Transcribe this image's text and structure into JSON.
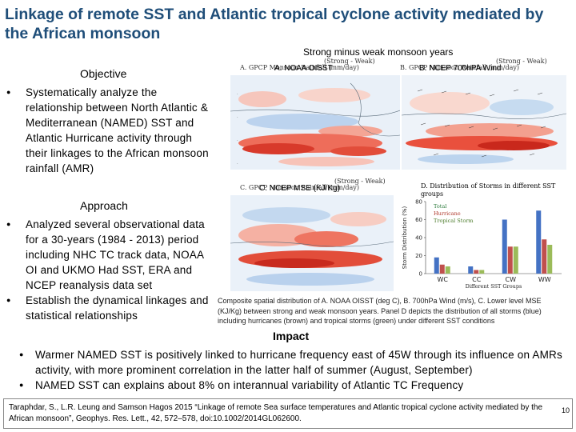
{
  "slide": {
    "title": "Linkage of remote SST and Atlantic tropical cyclone activity mediated by the African monsoon",
    "figure_heading": "Strong minus weak monsoon years",
    "page_number": "10"
  },
  "objective": {
    "heading": "Objective",
    "bullets": [
      "Systematically analyze the relationship between North Atlantic & Mediterranean (NAMED) SST and Atlantic Hurricane activity through their linkages to the African monsoon rainfall (AMR)"
    ]
  },
  "approach": {
    "heading": "Approach",
    "bullets": [
      "Analyzed several observational data for a 30-years (1984 - 2013) period including NHC TC track data, NOAA OI and UKMO Had SST, ERA and NCEP reanalysis data set",
      "Establish the dynamical linkages and statistical relationships"
    ]
  },
  "panels": {
    "a_label": "A. NOAA OISST",
    "a_sublabel": "A. GPCP Monsoon Rainfall (mm/day)",
    "a_corner": "(Strong - Weak)",
    "b_label": "B. NCEP 700hPA Wind",
    "b_sublabel": "B. GPCP Monsoon Rainfall (mm/day)",
    "b_corner": "(Strong - Weak)",
    "c_label": "C. NCEP MSE (KJ/Kg)",
    "c_sublabel": "C. GPCP Monsoon Rainfall (mm/day)",
    "c_corner": "(Strong - Weak)",
    "d_title": "D. Distribution of Storms in different SST groups"
  },
  "chart_data": {
    "type": "bar",
    "title": "D. Distribution of Storms in different SST groups",
    "xlabel": "Different SST Groups",
    "ylabel": "Storm Distribution (%)",
    "categories": [
      "WC",
      "CC",
      "CW",
      "WW"
    ],
    "ylim": [
      0,
      80
    ],
    "yticks": [
      0,
      20,
      40,
      60,
      80
    ],
    "series": [
      {
        "name": "Total",
        "color": "#4472c4",
        "values": [
          18,
          8,
          60,
          70
        ]
      },
      {
        "name": "Hurricane",
        "color": "#c0504d",
        "values": [
          10,
          4,
          30,
          38
        ]
      },
      {
        "name": "Tropical Storm",
        "color": "#9bbb59",
        "values": [
          8,
          4,
          30,
          32
        ]
      }
    ],
    "legend_position": "top-left"
  },
  "caption": "Composite spatial distribution of A. NOAA OISST (deg C), B. 700hPa Wind (m/s), C. Lower level MSE (KJ/Kg) between strong and weak monsoon years. Panel D depicts the distribution of all storms (blue) including hurricanes (brown) and tropical storms (green) under different SST conditions",
  "impact": {
    "heading": "Impact",
    "bullets": [
      "Warmer NAMED SST is positively linked to hurricane frequency east of 45W through its influence on AMRs activity, with more prominent correlation in the latter half of summer (August, September)",
      "NAMED SST can explains about 8% on interannual variability of Atlantic TC Frequency"
    ]
  },
  "citation": "Taraphdar, S., L.R. Leung and Samson Hagos 2015 “Linkage of remote Sea surface temperatures and Atlantic tropical cyclone activity mediated by the African monsoon”, Geophys. Res. Lett., 42, 572–578, doi:10.1002/2014GL062600."
}
